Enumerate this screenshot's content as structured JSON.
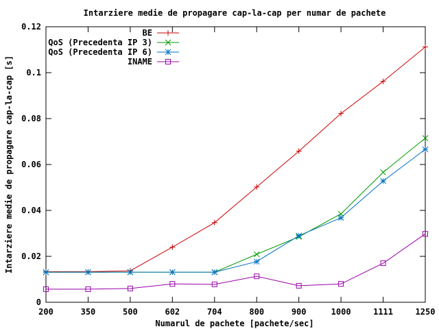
{
  "chart_data": {
    "type": "line",
    "title": "Intarziere medie de propagare cap-la-cap per numar de pachete",
    "xlabel": "Numarul de pachete [pachete/sec]",
    "ylabel": "Intarziere medie de propagare cap-la-cap [s]",
    "categories": [
      "200",
      "350",
      "500",
      "602",
      "704",
      "800",
      "900",
      "1000",
      "1111",
      "1250"
    ],
    "ylim": [
      0,
      0.12
    ],
    "yticks": [
      "0",
      "0.02",
      "0.04",
      "0.06",
      "0.08",
      "0.1",
      "0.12"
    ],
    "grid": false,
    "legend_position": "top-left",
    "series": [
      {
        "name": "BE",
        "color": "#cc0000",
        "marker": "plus",
        "values": [
          0.0133,
          0.0133,
          0.0137,
          0.024,
          0.0347,
          0.0502,
          0.0658,
          0.0822,
          0.0962,
          0.1112
        ]
      },
      {
        "name": "QoS (Precedenta IP 3)",
        "color": "#009900",
        "marker": "cross",
        "values": [
          0.0131,
          0.0131,
          0.0131,
          0.0131,
          0.0131,
          0.0209,
          0.0285,
          0.0385,
          0.0566,
          0.0715
        ]
      },
      {
        "name": "QoS (Precedenta IP 6)",
        "color": "#0070c0",
        "marker": "star",
        "values": [
          0.0131,
          0.0131,
          0.0131,
          0.0131,
          0.0131,
          0.0177,
          0.029,
          0.0368,
          0.0528,
          0.0666
        ]
      },
      {
        "name": "INAME",
        "color": "#9900aa",
        "marker": "square",
        "values": [
          0.0057,
          0.0057,
          0.006,
          0.008,
          0.0078,
          0.0113,
          0.0072,
          0.008,
          0.017,
          0.0298
        ]
      }
    ]
  }
}
